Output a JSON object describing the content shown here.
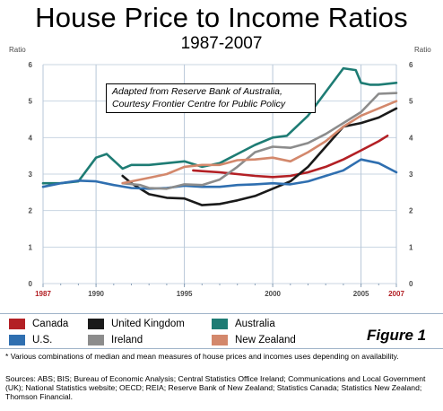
{
  "chart_data": {
    "type": "line",
    "title": "House Price to Income Ratios",
    "subtitle": "1987-2007",
    "ylabel_left": "Ratio",
    "ylabel_right": "Ratio",
    "ylim": [
      0,
      6
    ],
    "yticks": [
      "0",
      "1",
      "2",
      "3",
      "4",
      "5",
      "6"
    ],
    "xlim": [
      1987,
      2007
    ],
    "xticks": [
      {
        "value": 1987,
        "label": "1987",
        "highlight": true
      },
      {
        "value": 1990,
        "label": "1990",
        "highlight": false
      },
      {
        "value": 1995,
        "label": "1995",
        "highlight": false
      },
      {
        "value": 2000,
        "label": "2000",
        "highlight": false
      },
      {
        "value": 2005,
        "label": "2005",
        "highlight": false
      },
      {
        "value": 2007,
        "label": "2007",
        "highlight": true
      }
    ],
    "grid": true,
    "annotation": "Adapted from Reserve Bank of Australia, Courtesy Frontier Centre for Public Policy",
    "series": [
      {
        "name": "Canada",
        "color": "#b32025",
        "points": [
          [
            1995.5,
            3.1
          ],
          [
            1996,
            3.08
          ],
          [
            1997,
            3.05
          ],
          [
            1998,
            3.0
          ],
          [
            1999,
            2.95
          ],
          [
            2000,
            2.92
          ],
          [
            2001,
            2.95
          ],
          [
            2002,
            3.05
          ],
          [
            2003,
            3.2
          ],
          [
            2004,
            3.4
          ],
          [
            2005,
            3.65
          ],
          [
            2006,
            3.9
          ],
          [
            2006.5,
            4.05
          ]
        ]
      },
      {
        "name": "United Kingdom",
        "color": "#1a1a1a",
        "points": [
          [
            1991.5,
            2.95
          ],
          [
            1992,
            2.75
          ],
          [
            1993,
            2.45
          ],
          [
            1994,
            2.35
          ],
          [
            1995,
            2.33
          ],
          [
            1996,
            2.15
          ],
          [
            1997,
            2.18
          ],
          [
            1998,
            2.28
          ],
          [
            1999,
            2.4
          ],
          [
            2000,
            2.6
          ],
          [
            2001,
            2.8
          ],
          [
            2002,
            3.2
          ],
          [
            2003,
            3.75
          ],
          [
            2004,
            4.3
          ],
          [
            2005,
            4.4
          ],
          [
            2006,
            4.55
          ],
          [
            2007,
            4.8
          ]
        ]
      },
      {
        "name": "Australia",
        "color": "#1e7c74",
        "points": [
          [
            1987,
            2.75
          ],
          [
            1988,
            2.75
          ],
          [
            1989,
            2.8
          ],
          [
            1990,
            3.45
          ],
          [
            1990.6,
            3.55
          ],
          [
            1991.5,
            3.15
          ],
          [
            1992,
            3.25
          ],
          [
            1993,
            3.25
          ],
          [
            1994,
            3.3
          ],
          [
            1995,
            3.35
          ],
          [
            1996,
            3.2
          ],
          [
            1997,
            3.3
          ],
          [
            1998,
            3.55
          ],
          [
            1999,
            3.8
          ],
          [
            2000,
            4.0
          ],
          [
            2000.8,
            4.05
          ],
          [
            2002,
            4.6
          ],
          [
            2003,
            5.25
          ],
          [
            2004,
            5.9
          ],
          [
            2004.7,
            5.85
          ],
          [
            2005,
            5.5
          ],
          [
            2005.5,
            5.45
          ],
          [
            2006,
            5.45
          ],
          [
            2007,
            5.5
          ]
        ]
      },
      {
        "name": "U.S.",
        "color": "#2f6fb0",
        "points": [
          [
            1987,
            2.65
          ],
          [
            1988,
            2.75
          ],
          [
            1989,
            2.82
          ],
          [
            1990,
            2.8
          ],
          [
            1991,
            2.7
          ],
          [
            1992,
            2.62
          ],
          [
            1993,
            2.6
          ],
          [
            1994,
            2.62
          ],
          [
            1995,
            2.68
          ],
          [
            1996,
            2.65
          ],
          [
            1997,
            2.65
          ],
          [
            1998,
            2.7
          ],
          [
            1999,
            2.72
          ],
          [
            2000,
            2.75
          ],
          [
            2001,
            2.72
          ],
          [
            2002,
            2.8
          ],
          [
            2003,
            2.95
          ],
          [
            2004,
            3.1
          ],
          [
            2005,
            3.4
          ],
          [
            2006,
            3.3
          ],
          [
            2007,
            3.05
          ]
        ]
      },
      {
        "name": "Ireland",
        "color": "#8c8c8c",
        "points": [
          [
            1991.5,
            2.75
          ],
          [
            1992.5,
            2.7
          ],
          [
            1993,
            2.62
          ],
          [
            1994,
            2.6
          ],
          [
            1995,
            2.72
          ],
          [
            1996,
            2.7
          ],
          [
            1997,
            2.85
          ],
          [
            1998,
            3.2
          ],
          [
            1999,
            3.6
          ],
          [
            2000,
            3.75
          ],
          [
            2001,
            3.72
          ],
          [
            2002,
            3.85
          ],
          [
            2003,
            4.1
          ],
          [
            2004,
            4.4
          ],
          [
            2005,
            4.7
          ],
          [
            2006,
            5.2
          ],
          [
            2007,
            5.22
          ]
        ]
      },
      {
        "name": "New Zealand",
        "color": "#d3886c",
        "points": [
          [
            1991.5,
            2.75
          ],
          [
            1992,
            2.8
          ],
          [
            1993,
            2.9
          ],
          [
            1994,
            3.0
          ],
          [
            1995,
            3.2
          ],
          [
            1996,
            3.25
          ],
          [
            1997,
            3.25
          ],
          [
            1998,
            3.38
          ],
          [
            1999,
            3.4
          ],
          [
            2000,
            3.45
          ],
          [
            2001,
            3.35
          ],
          [
            2002,
            3.6
          ],
          [
            2003,
            3.9
          ],
          [
            2004,
            4.3
          ],
          [
            2005,
            4.6
          ],
          [
            2006,
            4.8
          ],
          [
            2007,
            5.0
          ]
        ]
      }
    ]
  },
  "legend": [
    {
      "label": "Canada",
      "color": "#b32025"
    },
    {
      "label": "United Kingdom",
      "color": "#1a1a1a"
    },
    {
      "label": "Australia",
      "color": "#1e7c74"
    },
    {
      "label": "U.S.",
      "color": "#2f6fb0"
    },
    {
      "label": "Ireland",
      "color": "#8c8c8c"
    },
    {
      "label": "New Zealand",
      "color": "#d3886c"
    }
  ],
  "figure_label": "Figure 1",
  "footnote": "* Various combinations of median and mean measures of house prices and incomes uses depending on availability.",
  "sources": "Sources: ABS; BIS; Bureau of Economic Analysis; Central Statistics Office Ireland; Communications and Local Government (UK); National Statistics website; OECD; REIA; Reserve Bank of New Zealand; Statistics Canada; Statistics New Zealand; Thomson Financial."
}
